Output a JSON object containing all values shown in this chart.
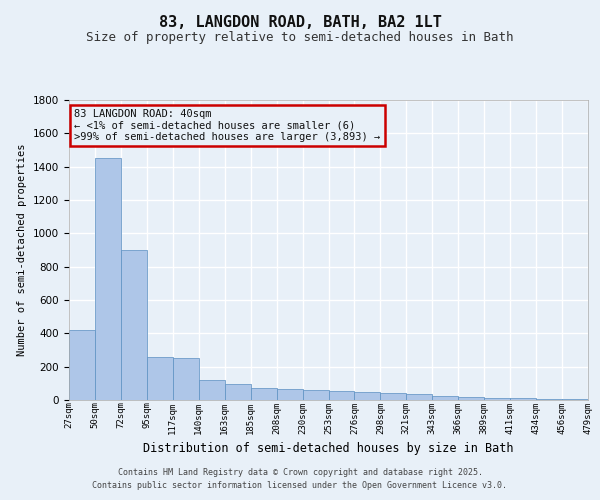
{
  "title": "83, LANGDON ROAD, BATH, BA2 1LT",
  "subtitle": "Size of property relative to semi-detached houses in Bath",
  "xlabel": "Distribution of semi-detached houses by size in Bath",
  "ylabel": "Number of semi-detached properties",
  "annotation_title": "83 LANGDON ROAD: 40sqm",
  "annotation_line2": "← <1% of semi-detached houses are smaller (6)",
  "annotation_line3": ">99% of semi-detached houses are larger (3,893) →",
  "footer_line1": "Contains HM Land Registry data © Crown copyright and database right 2025.",
  "footer_line2": "Contains public sector information licensed under the Open Government Licence v3.0.",
  "bar_values": [
    420,
    1450,
    900,
    260,
    250,
    120,
    95,
    75,
    65,
    60,
    55,
    50,
    45,
    35,
    25,
    20,
    15,
    10,
    8,
    6
  ],
  "bin_labels": [
    "27sqm",
    "50sqm",
    "72sqm",
    "95sqm",
    "117sqm",
    "140sqm",
    "163sqm",
    "185sqm",
    "208sqm",
    "230sqm",
    "253sqm",
    "276sqm",
    "298sqm",
    "321sqm",
    "343sqm",
    "366sqm",
    "389sqm",
    "411sqm",
    "434sqm",
    "456sqm",
    "479sqm"
  ],
  "bar_color": "#aec6e8",
  "bar_edge_color": "#5a8fc2",
  "bg_color": "#e8f0f8",
  "grid_color": "#ffffff",
  "annotation_box_color": "#cc0000",
  "ylim": [
    0,
    1800
  ],
  "yticks": [
    0,
    200,
    400,
    600,
    800,
    1000,
    1200,
    1400,
    1600,
    1800
  ],
  "title_fontsize": 11,
  "subtitle_fontsize": 9
}
